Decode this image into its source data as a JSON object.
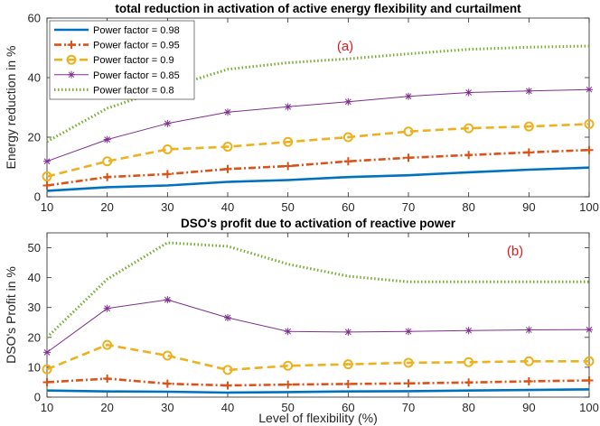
{
  "chart_data": [
    {
      "type": "line",
      "title": "total reduction in activation of active energy flexibility and curtailment",
      "xlabel": "",
      "ylabel": "Energy reduction in %",
      "annotation": "(a)",
      "x": [
        10,
        20,
        30,
        40,
        50,
        60,
        70,
        80,
        90,
        100
      ],
      "xlim": [
        10,
        100
      ],
      "ylim": [
        0,
        60
      ],
      "xticks": [
        "10",
        "20",
        "30",
        "40",
        "50",
        "60",
        "70",
        "80",
        "90",
        "100"
      ],
      "yticks": [
        "0",
        "20",
        "40",
        "60"
      ],
      "legend_position": "top-left",
      "series": [
        {
          "name": "Power factor = 0.98",
          "color": "#0072BD",
          "values": [
            2.0,
            3.2,
            3.8,
            5.0,
            5.6,
            6.6,
            7.2,
            8.2,
            9.1,
            9.8
          ]
        },
        {
          "name": "Power factor = 0.95",
          "color": "#D95319",
          "values": [
            3.8,
            6.6,
            7.6,
            9.3,
            10.3,
            11.9,
            13.1,
            14.0,
            14.9,
            15.7
          ]
        },
        {
          "name": "Power factor = 0.9",
          "color": "#EDB120",
          "values": [
            6.8,
            11.9,
            15.9,
            16.8,
            18.4,
            20.0,
            21.9,
            23.0,
            23.6,
            24.4
          ]
        },
        {
          "name": "Power factor = 0.85",
          "color": "#7E2F8E",
          "values": [
            11.9,
            19.2,
            24.6,
            28.4,
            30.2,
            31.9,
            33.7,
            35.0,
            35.5,
            36.0
          ]
        },
        {
          "name": "Power factor = 0.8",
          "color": "#77AC30",
          "values": [
            18.5,
            29.7,
            36.5,
            42.8,
            45.0,
            46.3,
            48.0,
            49.5,
            50.2,
            50.6
          ]
        }
      ]
    },
    {
      "type": "line",
      "title": "DSO's profit due to activation of reactive power",
      "xlabel": "Level of flexibility (%)",
      "ylabel": "DSO's Profit in %",
      "annotation": "(b)",
      "x": [
        10,
        20,
        30,
        40,
        50,
        60,
        70,
        80,
        90,
        100
      ],
      "xlim": [
        10,
        100
      ],
      "ylim": [
        0,
        55
      ],
      "xticks": [
        "10",
        "20",
        "30",
        "40",
        "50",
        "60",
        "70",
        "80",
        "90",
        "100"
      ],
      "yticks": [
        "0",
        "10",
        "20",
        "30",
        "40",
        "50"
      ],
      "series": [
        {
          "name": "Power factor = 0.98",
          "color": "#0072BD",
          "values": [
            2.2,
            1.9,
            1.8,
            1.5,
            1.7,
            1.9,
            2.0,
            2.2,
            2.4,
            2.6
          ]
        },
        {
          "name": "Power factor = 0.95",
          "color": "#D95319",
          "values": [
            5.0,
            6.2,
            4.5,
            3.9,
            4.2,
            4.4,
            4.6,
            4.9,
            5.3,
            5.6
          ]
        },
        {
          "name": "Power factor = 0.9",
          "color": "#EDB120",
          "values": [
            9.3,
            17.5,
            13.9,
            9.1,
            10.5,
            11.0,
            11.5,
            11.7,
            12.0,
            12.0
          ]
        },
        {
          "name": "Power factor = 0.85",
          "color": "#7E2F8E",
          "values": [
            15.0,
            29.7,
            32.6,
            26.6,
            22.0,
            21.8,
            22.0,
            22.3,
            22.5,
            22.6
          ]
        },
        {
          "name": "Power factor = 0.8",
          "color": "#77AC30",
          "values": [
            20.0,
            39.5,
            51.7,
            50.5,
            44.5,
            40.5,
            38.6,
            38.6,
            38.6,
            38.6
          ]
        }
      ]
    }
  ]
}
